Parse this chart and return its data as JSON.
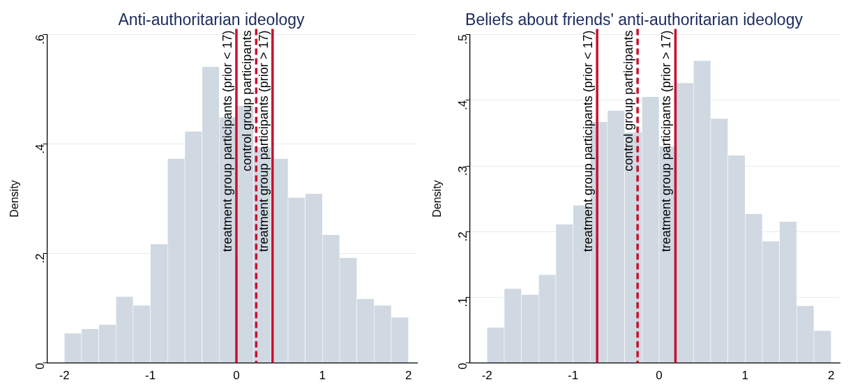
{
  "chart_data": [
    {
      "type": "histogram",
      "title": "Anti-authoritarian ideology",
      "ylabel": "Density",
      "color": "#d0d9e2",
      "bins": [
        -2,
        -1.8,
        -1.6,
        -1.4,
        -1.2,
        -1,
        -0.8,
        -0.6,
        -0.4,
        -0.2,
        0,
        0.2,
        0.4,
        0.6,
        0.8,
        1,
        1.2,
        1.4,
        1.6,
        1.8,
        2
      ],
      "values": [
        0.054,
        0.062,
        0.07,
        0.121,
        0.105,
        0.217,
        0.373,
        0.423,
        0.541,
        0.449,
        0.47,
        0.394,
        0.373,
        0.302,
        0.309,
        0.234,
        0.192,
        0.117,
        0.105,
        0.083
      ],
      "xlim": [
        -2.2,
        2.1
      ],
      "xticks": [
        -2,
        -1,
        0,
        1,
        2
      ],
      "ylim": [
        0,
        0.6
      ],
      "yticks": [
        0,
        {
          "value": 0.2,
          "label": ".2"
        },
        {
          "value": 0.4,
          "label": ".4"
        },
        {
          "value": 0.6,
          "label": ".6"
        }
      ],
      "grid": "y",
      "ref_lines": [
        {
          "axis": "x",
          "value": 0,
          "label": "treatment group participants (prior < 17)",
          "color": "#c8102e",
          "line_style": "solid"
        },
        {
          "axis": "x",
          "value": 0.23,
          "label": "control group participants",
          "color": "#c8102e",
          "line_style": "dashed"
        },
        {
          "axis": "x",
          "value": 0.42,
          "label": "treatment group participants (prior > 17)",
          "color": "#c8102e",
          "line_style": "solid"
        }
      ]
    },
    {
      "type": "histogram",
      "title": "Beliefs about friends' anti-authoritarian ideology",
      "ylabel": "Density",
      "color": "#d0d9e2",
      "bins": [
        -2,
        -1.8,
        -1.6,
        -1.4,
        -1.2,
        -1,
        -0.8,
        -0.6,
        -0.4,
        -0.2,
        0,
        0.2,
        0.4,
        0.6,
        0.8,
        1,
        1.2,
        1.4,
        1.6,
        1.8,
        2
      ],
      "values": [
        0.054,
        0.113,
        0.104,
        0.134,
        0.211,
        0.24,
        0.367,
        0.384,
        0.351,
        0.405,
        0.33,
        0.426,
        0.46,
        0.372,
        0.316,
        0.227,
        0.185,
        0.215,
        0.087,
        0.049
      ],
      "xlim": [
        -2.2,
        2.1
      ],
      "xticks": [
        -2,
        -1,
        0,
        1,
        2
      ],
      "ylim": [
        0,
        0.5
      ],
      "yticks": [
        0,
        {
          "value": 0.1,
          "label": ".1"
        },
        {
          "value": 0.2,
          "label": ".2"
        },
        {
          "value": 0.3,
          "label": ".3"
        },
        {
          "value": 0.4,
          "label": ".4"
        },
        {
          "value": 0.5,
          "label": ".5"
        }
      ],
      "grid": "y",
      "ref_lines": [
        {
          "axis": "x",
          "value": -0.72,
          "label": "treatment group participants (prior < 17)",
          "color": "#c8102e",
          "line_style": "solid"
        },
        {
          "axis": "x",
          "value": -0.25,
          "label": "control group participants",
          "color": "#c8102e",
          "line_style": "dashed"
        },
        {
          "axis": "x",
          "value": 0.19,
          "label": "treatment group participants (prior > 17)",
          "color": "#c8102e",
          "line_style": "solid"
        }
      ]
    }
  ]
}
